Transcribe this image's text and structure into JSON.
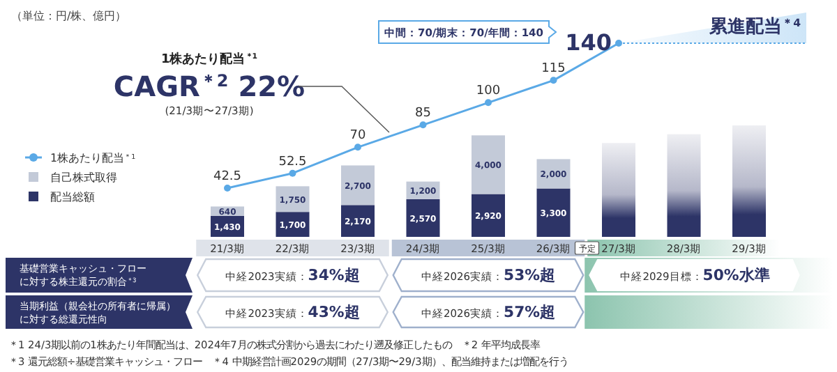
{
  "chart_data": {
    "type": "bar",
    "stacked": true,
    "categories": [
      "21/3期",
      "22/3期",
      "23/3期",
      "24/3期",
      "25/3期",
      "26/3期",
      "27/3期",
      "28/3期",
      "29/3期"
    ],
    "series": [
      {
        "name": "1株あたり配当$^{＊1}$",
        "type": "line",
        "axis": "y2",
        "color": "#5aa9e6",
        "marker": "circle",
        "values": [
          42.5,
          52.5,
          70,
          85,
          100,
          115,
          140,
          null,
          null
        ],
        "value_labels": [
          "42.5",
          "52.5",
          "70",
          "85",
          "100",
          "115",
          "140",
          null,
          null
        ]
      },
      {
        "name": "配当総額",
        "color": "#2d3467",
        "values": [
          1430,
          1700,
          2170,
          2570,
          2920,
          3300,
          null,
          null,
          null
        ],
        "value_labels": [
          "1,430",
          "1,700",
          "2,170",
          "2,570",
          "2,920",
          "3,300",
          null,
          null,
          null
        ]
      },
      {
        "name": "自己株式取得",
        "color": "#c3cad8",
        "values": [
          640,
          1750,
          2700,
          1200,
          4000,
          2000,
          null,
          null,
          null
        ],
        "value_labels": [
          "640",
          "1,750",
          "2,700",
          "1,200",
          "4,000",
          "2,000",
          null,
          null,
          null
        ]
      },
      {
        "color": "#2d3467",
        "values": [
          null,
          null,
          null,
          null,
          null,
          null,
          6400,
          7000,
          7600
        ]
      }
    ],
    "legend": "left",
    "ref_lines": [
      {
        "axis": "y2",
        "value": 140,
        "label": "累進配当$^{＊4}$",
        "line_style": "dotted",
        "color": "#5aa9e6"
      }
    ],
    "annotations": [
      "（単位：円/株、億円）",
      "1株あたり配当$^{＊1}$",
      "CAGR$^{＊2}$ 22%",
      "(21/3期〜27/3期)",
      "中間：70/期末：70/年間：140",
      "予定",
      "基礎営業キャッシュ・フロー",
      "に対する株主還元の割合$^{＊3}$",
      "当期利益（親会社の所有者に帰属）",
      "に対する総還元性向",
      "中経2023実績：**34%超**",
      "中経2026実績：**53%超**",
      "中経2029目標：**50%水準**",
      "中経2023実績：**43%超**",
      "中経2026実績：**57%超**",
      "＊1 24/3期以前の1株あたり年間配当は、2024年7月の株式分割から過去にわたり遡及修正したもの　＊2 年平均成長率",
      "＊3 還元総額÷基礎営業キャッシュ・フロー　＊4 中期経営計画2029の期間（27/3期〜29/3期）、配当維持または増配を行う"
    ]
  }
}
